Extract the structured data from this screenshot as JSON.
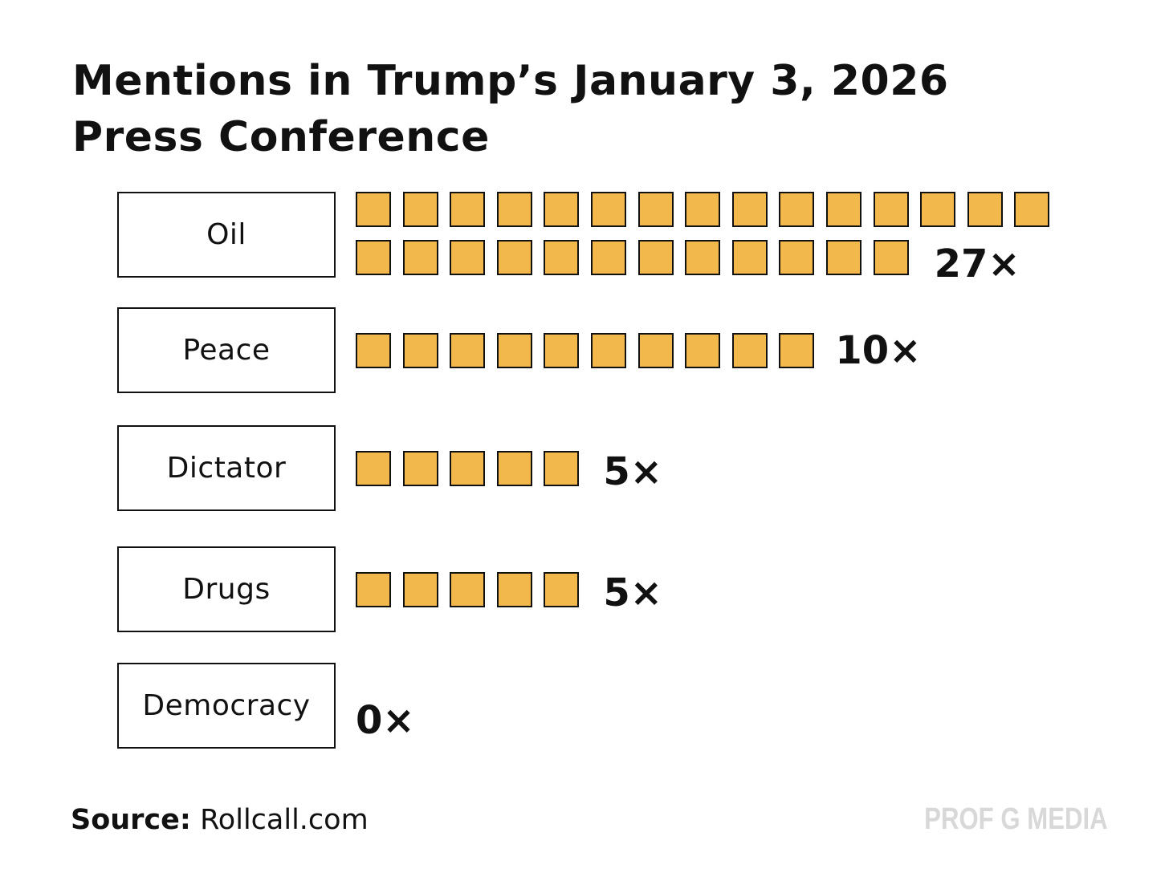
{
  "title_line1": "Mentions in Trump’s January 3, 2026",
  "title_line2": "Press Conference",
  "source_label": "Source:",
  "source_value": "Rollcall.com",
  "brand": "PROF G MEDIA",
  "colors": {
    "square_fill": "#f2b84b",
    "square_border": "#111111",
    "brand": "#d8d8d8"
  },
  "chart_data": {
    "type": "bar",
    "categories": [
      "Oil",
      "Peace",
      "Dictator",
      "Drugs",
      "Democracy"
    ],
    "values": [
      27,
      10,
      5,
      5,
      0
    ],
    "value_labels": [
      "27×",
      "10×",
      "5×",
      "5×",
      "0×"
    ],
    "title": "Mentions in Trump’s January 3, 2026 Press Conference",
    "xlabel": "",
    "ylabel": ""
  }
}
